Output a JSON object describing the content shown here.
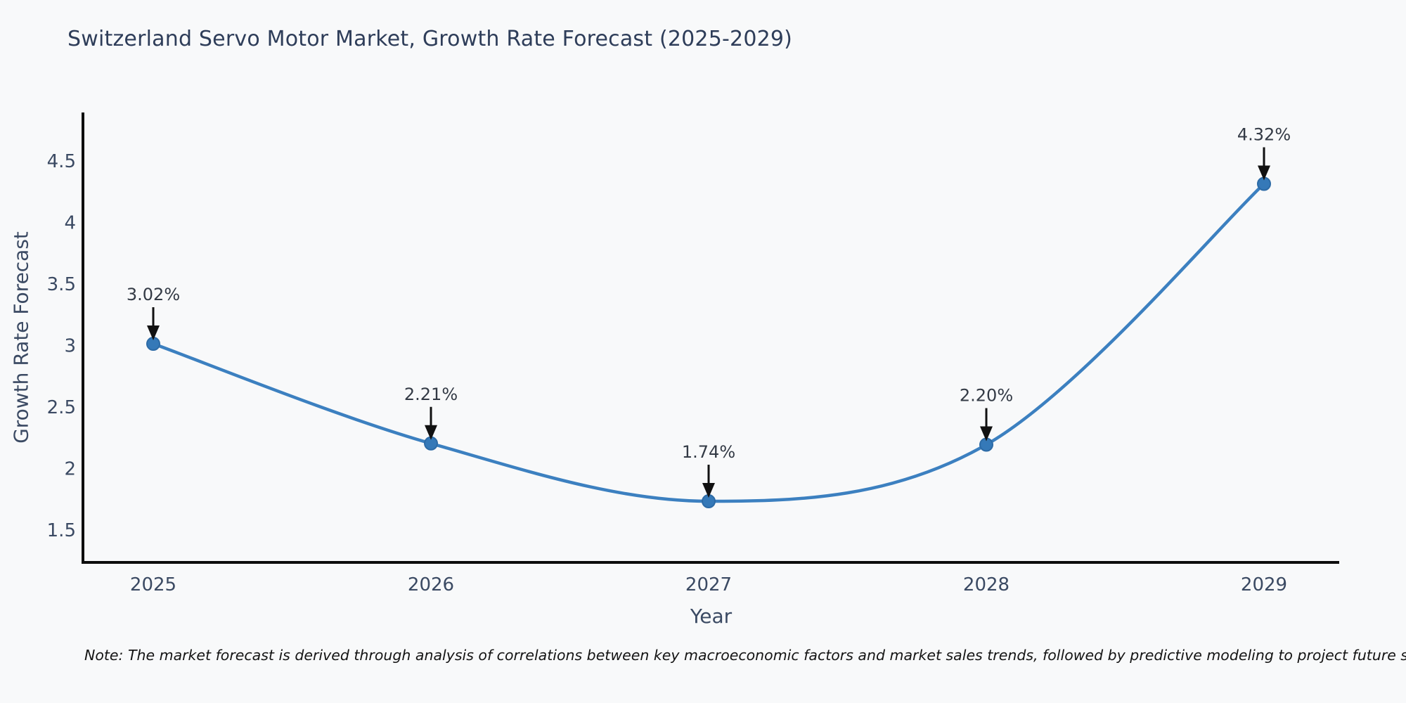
{
  "title": "Switzerland Servo Motor Market, Growth Rate Forecast (2025-2029)",
  "footnote": "Note: The market forecast is derived through analysis of correlations between key macroeconomic factors and market sales trends, followed by predictive modeling to project future sales",
  "chart_data": {
    "type": "line",
    "title": "Switzerland Servo Motor Market, Growth Rate Forecast (2025-2029)",
    "xlabel": "Year",
    "ylabel": "Growth Rate Forecast",
    "categories": [
      "2025",
      "2026",
      "2027",
      "2028",
      "2029"
    ],
    "values": [
      3.02,
      2.21,
      1.74,
      2.2,
      4.32
    ],
    "point_labels": [
      "3.02%",
      "2.21%",
      "1.74%",
      "2.20%",
      "4.32%"
    ],
    "yticks": [
      1.5,
      2,
      2.5,
      3,
      3.5,
      4,
      4.5
    ],
    "ylim": [
      1.243,
      4.9
    ],
    "grid": false,
    "legend": false,
    "curve": "spline",
    "colors": {
      "line": "#3c80c0",
      "marker_fill": "#3579b8",
      "marker_edge": "#2d6ba6",
      "axis": "#0d0d0d",
      "annotation_arrow": "#111111",
      "tick_text": "#3b4a63",
      "background": "#f8f9fa"
    }
  }
}
